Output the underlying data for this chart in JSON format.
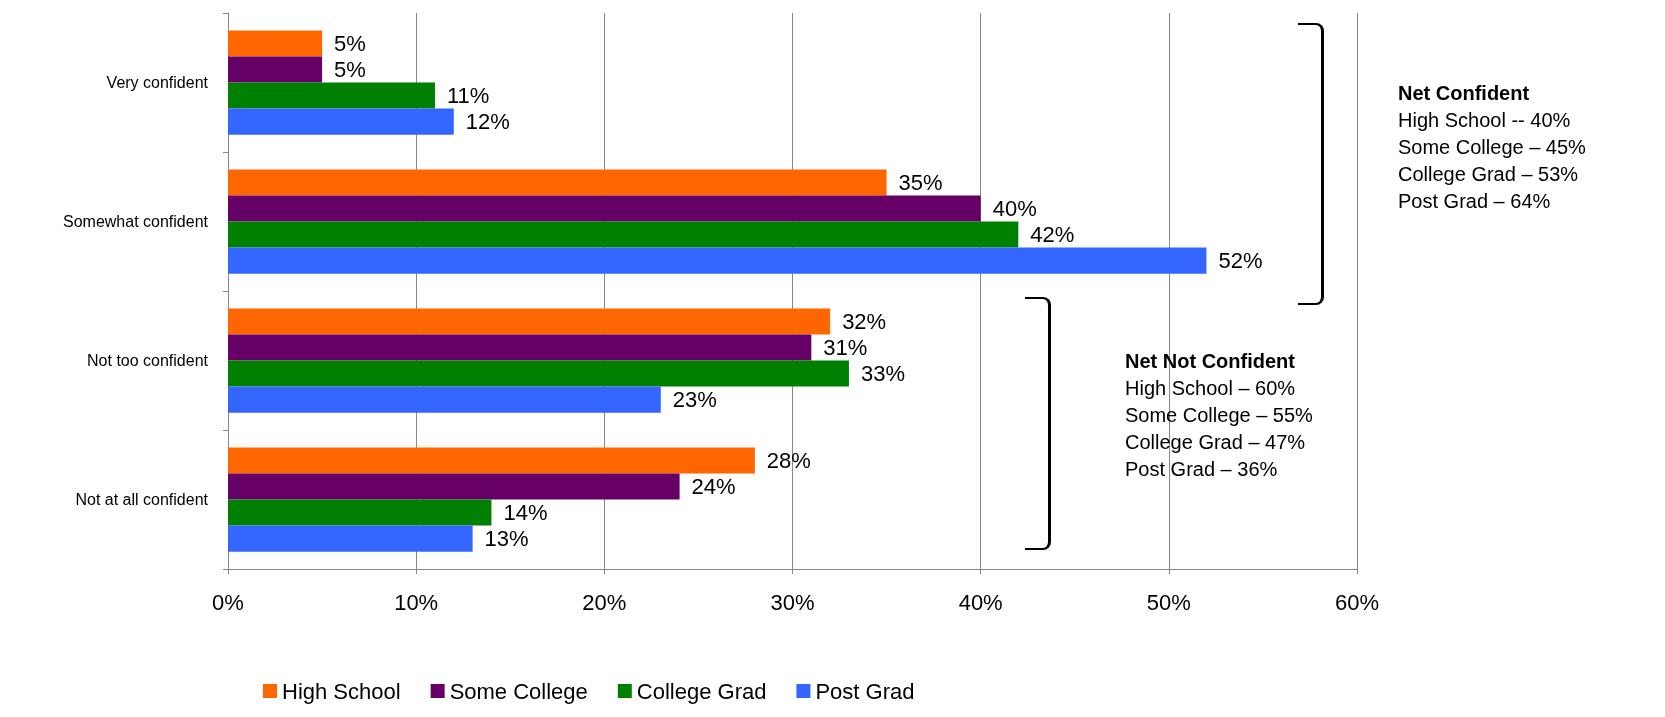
{
  "chart_data": {
    "type": "bar",
    "orientation": "horizontal",
    "categories": [
      "Very confident",
      "Somewhat confident",
      "Not too confident",
      "Not at all confident"
    ],
    "series": [
      {
        "name": "High School",
        "color": "#ff6600",
        "values": [
          5,
          35,
          32,
          28
        ],
        "value_labels": [
          "5%",
          "35%",
          "32%",
          "28%"
        ]
      },
      {
        "name": "Some College",
        "color": "#660066",
        "values": [
          5,
          40,
          31,
          24
        ],
        "value_labels": [
          "5%",
          "40%",
          "31%",
          "24%"
        ]
      },
      {
        "name": "College Grad",
        "color": "#008000",
        "values": [
          11,
          42,
          33,
          14
        ],
        "value_labels": [
          "11%",
          "42%",
          "33%",
          "14%"
        ]
      },
      {
        "name": "Post Grad",
        "color": "#3366ff",
        "values": [
          12,
          52,
          23,
          13
        ],
        "value_labels": [
          "12%",
          "52%",
          "23%",
          "13%"
        ]
      }
    ],
    "xlim": [
      0,
      60
    ],
    "xticks": [
      {
        "value": 0,
        "label": "0%"
      },
      {
        "value": 10,
        "label": "10%"
      },
      {
        "value": 20,
        "label": "20%"
      },
      {
        "value": 30,
        "label": "30%"
      },
      {
        "value": 40,
        "label": "40%"
      },
      {
        "value": 50,
        "label": "50%"
      },
      {
        "value": 60,
        "label": "60%"
      }
    ],
    "grid": "x",
    "legend": "bottom",
    "annotations": [
      "Net Confident\nHigh School -- 40%\nSome College – 45%\nCollege Grad – 53%\nPost Grad – 64%",
      "Net Not Confident\nHigh School – 60%\nSome College – 55%\nCollege Grad – 47%\nPost Grad – 36%"
    ]
  }
}
